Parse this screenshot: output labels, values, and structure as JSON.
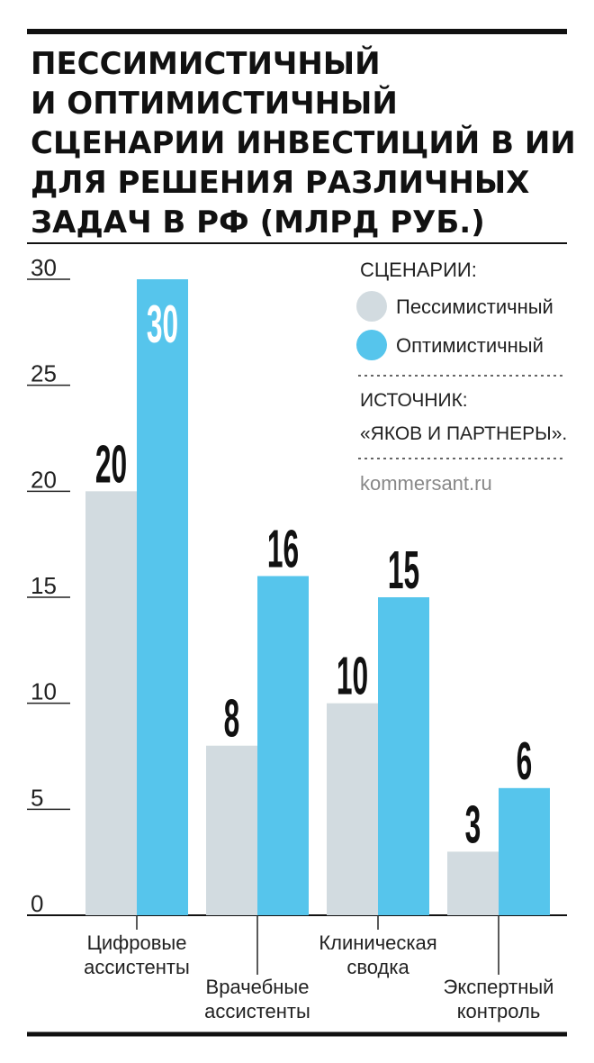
{
  "title_lines": [
    "ПЕССИМИСТИЧНЫЙ",
    "И ОПТИМИСТИЧНЫЙ",
    "СЦЕНАРИИ ИНВЕСТИЦИЙ В ИИ",
    "ДЛЯ РЕШЕНИЯ РАЗЛИЧНЫХ",
    "ЗАДАЧ В РФ (МЛРД РУБ.)"
  ],
  "legend": {
    "heading": "СЦЕНАРИИ:",
    "items": [
      {
        "label": "Пессимистичный",
        "color": "#d2dbe0"
      },
      {
        "label": "Оптимистичный",
        "color": "#56c5ec"
      }
    ]
  },
  "source": {
    "heading": "ИСТОЧНИК:",
    "name": "«ЯКОВ И ПАРТНЕРЫ».",
    "site": "kommersant.ru"
  },
  "chart_data": {
    "type": "bar",
    "categories": [
      [
        "Цифровые",
        "ассистенты"
      ],
      [
        "Врачебные",
        "ассистенты"
      ],
      [
        "Клиническая",
        "сводка"
      ],
      [
        "Экспертный",
        "контроль"
      ]
    ],
    "series": [
      {
        "name": "Пессимистичный",
        "values": [
          20,
          8,
          10,
          3
        ],
        "color": "#d2dbe0"
      },
      {
        "name": "Оптимистичный",
        "values": [
          30,
          16,
          15,
          6
        ],
        "color": "#56c5ec"
      }
    ],
    "yticks": [
      "0",
      "5",
      "10",
      "15",
      "20",
      "25",
      "30"
    ],
    "ylim": [
      0,
      30
    ]
  }
}
